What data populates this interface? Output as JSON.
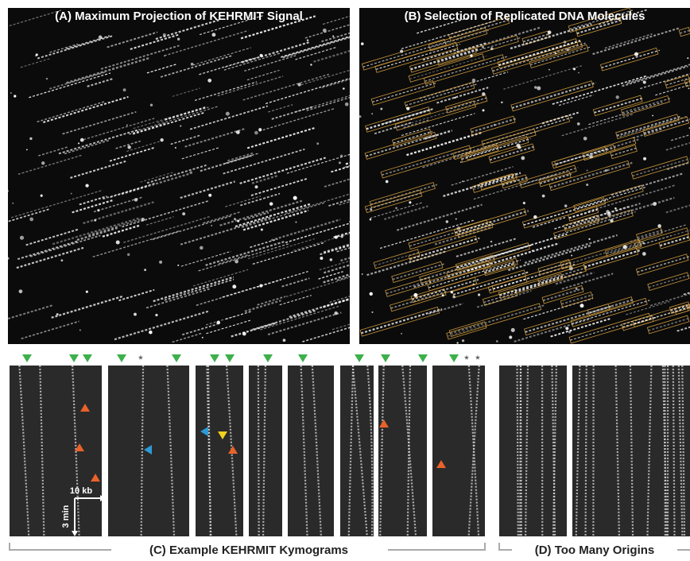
{
  "panels": {
    "a": {
      "title": "(A) Maximum Projection of KEHRMIT Signal"
    },
    "b": {
      "title": "(B) Selection of Replicated DNA Molecules"
    },
    "c": {
      "title": "(C) Example KEHRMIT Kymograms",
      "scale_x": "10 kb",
      "scale_y": "3 min",
      "markers": [
        "*",
        "*",
        "*"
      ]
    },
    "d": {
      "title": "(D) Too Many Origins"
    }
  }
}
